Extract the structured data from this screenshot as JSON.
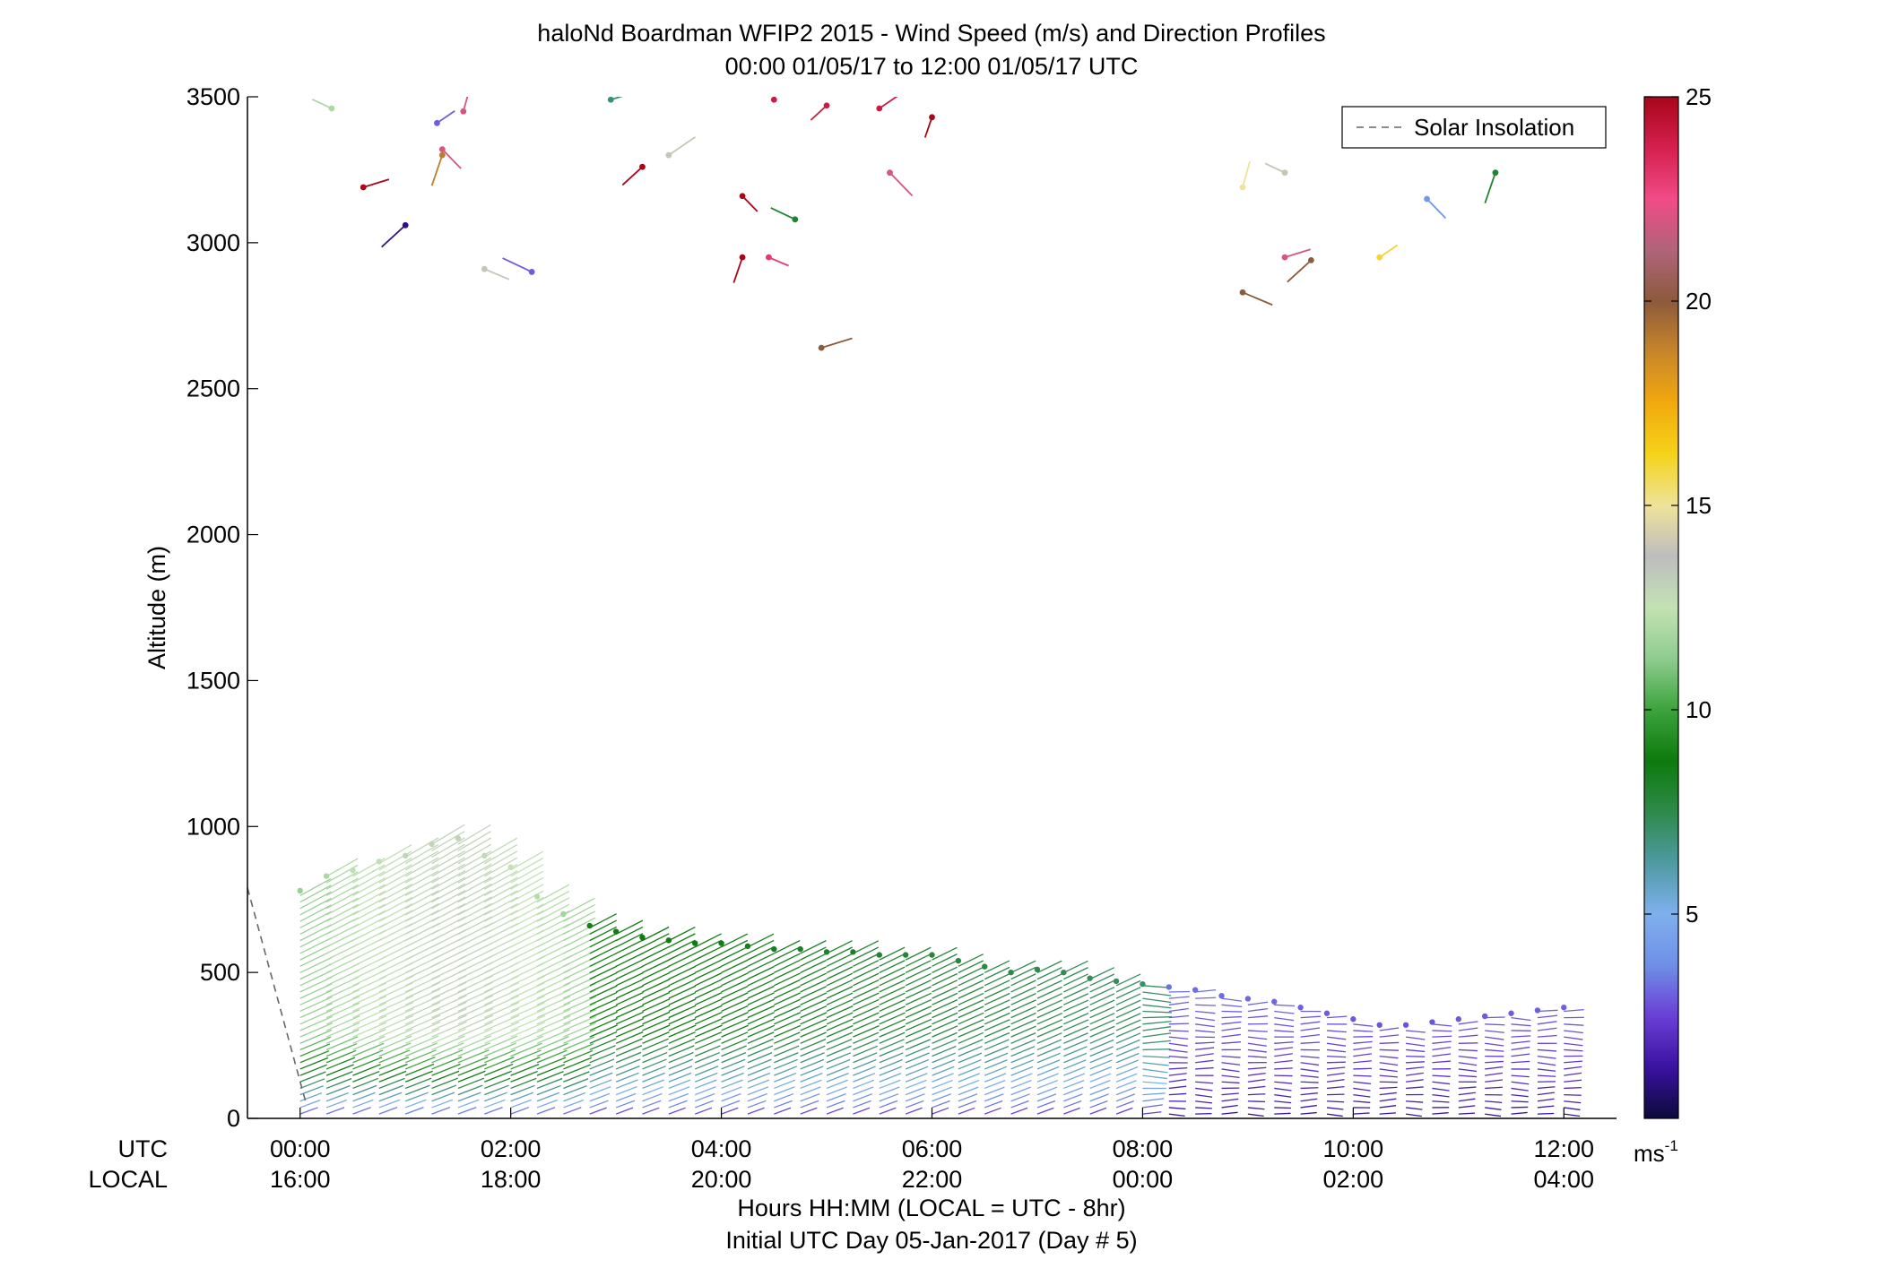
{
  "chart_data": {
    "type": "scatter",
    "title": "haloNd Boardman WFIP2 2015 - Wind Speed (m/s) and Direction Profiles",
    "subtitle": "00:00 01/05/17 to 12:00 01/05/17  UTC",
    "ylabel": "Altitude (m)",
    "xlabel": "Hours HH:MM  (LOCAL = UTC - 8hr)",
    "xlabel2": "Initial UTC Day 05-Jan-2017 (Day # 5)",
    "xrow_utc_label": "UTC",
    "xrow_local_label": "LOCAL",
    "xlim": [
      -0.5,
      12.5
    ],
    "ylim": [
      0,
      3500
    ],
    "yticks": [
      0,
      500,
      1000,
      1500,
      2000,
      2500,
      3000,
      3500
    ],
    "xticks": [
      0,
      2,
      4,
      6,
      8,
      10,
      12
    ],
    "xtick_labels_utc": [
      "00:00",
      "02:00",
      "04:00",
      "06:00",
      "08:00",
      "10:00",
      "12:00"
    ],
    "xtick_labels_local": [
      "16:00",
      "18:00",
      "20:00",
      "22:00",
      "00:00",
      "02:00",
      "04:00"
    ],
    "grid": false,
    "legend": {
      "placement": "top-right",
      "entries": [
        "Solar Insolation"
      ]
    },
    "colorbar": {
      "min": 0,
      "max": 25,
      "ticks": [
        5,
        10,
        15,
        20,
        25
      ],
      "unit_label": "ms",
      "unit_exponent": "-1",
      "colormap": [
        "#0b0a3a",
        "#3a12a0",
        "#6a3fd6",
        "#6f8fe6",
        "#7fb0ee",
        "#4f9aa2",
        "#2e8a4a",
        "#0d7a0d",
        "#3da33d",
        "#8fcc8f",
        "#c3e2b4",
        "#bdbdbd",
        "#efe39a",
        "#f4d31a",
        "#f2a90d",
        "#c8862a",
        "#8c5a3c",
        "#b0647a",
        "#f04b86",
        "#d4204f",
        "#a8061a"
      ]
    },
    "solar_insolation": {
      "x": [
        -0.5,
        0.05
      ],
      "y": [
        790,
        60
      ]
    },
    "profile_times": [
      0.0,
      0.25,
      0.5,
      0.75,
      1.0,
      1.25,
      1.5,
      1.75,
      2.0,
      2.25,
      2.5,
      2.75,
      3.0,
      3.25,
      3.5,
      3.75,
      4.0,
      4.25,
      4.5,
      4.75,
      5.0,
      5.25,
      5.5,
      5.75,
      6.0,
      6.25,
      6.5,
      6.75,
      7.0,
      7.25,
      7.5,
      7.75,
      8.0,
      8.25,
      8.5,
      8.75,
      9.0,
      9.25,
      9.5,
      9.75,
      10.0,
      10.25,
      10.5,
      10.75,
      11.0,
      11.25,
      11.5,
      11.75,
      12.0
    ],
    "profile_top_m": [
      780,
      830,
      850,
      880,
      900,
      940,
      960,
      900,
      860,
      760,
      700,
      660,
      640,
      620,
      610,
      600,
      600,
      590,
      580,
      580,
      570,
      570,
      560,
      560,
      560,
      540,
      520,
      500,
      510,
      500,
      480,
      470,
      460,
      450,
      440,
      420,
      410,
      400,
      380,
      360,
      340,
      320,
      320,
      330,
      340,
      350,
      360,
      370,
      380
    ],
    "profile_note": "Low-level profiles: strong 10-14 m/s (green/yellow) up to ~900 m before 02:30 UTC, weakening to 5-9 m/s (green) by 04:00-08:00, then 1-4 m/s (purple) below 400 m after 08:00 UTC.",
    "aloft_points": [
      {
        "t": 0.3,
        "alt": 3460,
        "speed": 12
      },
      {
        "t": 0.6,
        "alt": 3190,
        "speed": 25
      },
      {
        "t": 1.0,
        "alt": 3060,
        "speed": 1
      },
      {
        "t": 1.3,
        "alt": 3410,
        "speed": 3
      },
      {
        "t": 1.35,
        "alt": 3320,
        "speed": 22
      },
      {
        "t": 1.35,
        "alt": 3300,
        "speed": 19
      },
      {
        "t": 1.55,
        "alt": 3450,
        "speed": 22
      },
      {
        "t": 1.75,
        "alt": 2910,
        "speed": 14
      },
      {
        "t": 2.2,
        "alt": 2900,
        "speed": 3
      },
      {
        "t": 2.95,
        "alt": 3490,
        "speed": 7
      },
      {
        "t": 3.25,
        "alt": 3260,
        "speed": 25
      },
      {
        "t": 3.5,
        "alt": 3300,
        "speed": 14
      },
      {
        "t": 4.2,
        "alt": 3160,
        "speed": 25
      },
      {
        "t": 4.2,
        "alt": 2950,
        "speed": 25
      },
      {
        "t": 4.5,
        "alt": 3490,
        "speed": 24
      },
      {
        "t": 4.45,
        "alt": 2950,
        "speed": 23
      },
      {
        "t": 4.7,
        "alt": 3080,
        "speed": 8
      },
      {
        "t": 4.95,
        "alt": 2640,
        "speed": 20
      },
      {
        "t": 5.0,
        "alt": 3470,
        "speed": 24
      },
      {
        "t": 5.5,
        "alt": 3460,
        "speed": 24
      },
      {
        "t": 5.6,
        "alt": 3240,
        "speed": 22
      },
      {
        "t": 6.0,
        "alt": 3430,
        "speed": 25
      },
      {
        "t": 8.95,
        "alt": 3190,
        "speed": 15
      },
      {
        "t": 8.95,
        "alt": 2830,
        "speed": 20
      },
      {
        "t": 9.35,
        "alt": 3240,
        "speed": 14
      },
      {
        "t": 9.35,
        "alt": 2950,
        "speed": 22
      },
      {
        "t": 9.6,
        "alt": 2940,
        "speed": 20
      },
      {
        "t": 10.25,
        "alt": 2950,
        "speed": 16
      },
      {
        "t": 10.7,
        "alt": 3150,
        "speed": 4
      },
      {
        "t": 11.35,
        "alt": 3240,
        "speed": 8
      }
    ]
  }
}
